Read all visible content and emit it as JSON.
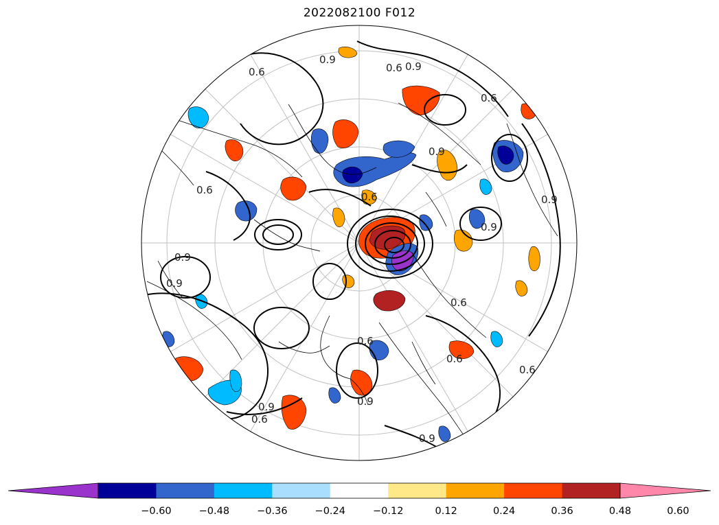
{
  "title": "2022082100 F012",
  "colorbar": {
    "colors": [
      "#9933cc",
      "#000099",
      "#3366cc",
      "#00bbff",
      "#aadeff",
      "#ffffff",
      "#ffe888",
      "#ffa500",
      "#ff4500",
      "#b22222",
      "#ff88aa"
    ],
    "extend": "both",
    "ticks": [
      "−0.60",
      "−0.48",
      "−0.36",
      "−0.24",
      "−0.12",
      "0.12",
      "0.24",
      "0.36",
      "0.48",
      "0.60"
    ]
  },
  "map": {
    "projection": "north-polar-stereographic",
    "contour_labels": [
      "0.9",
      "0.6",
      "0.9",
      "0.6",
      "0.9",
      "0.6",
      "0.9",
      "0.9",
      "0.6",
      "0.6",
      "0.9",
      "0.6",
      "0.9",
      "0.6",
      "0.9",
      "0.6",
      "0.9",
      "0.6",
      "0.9",
      "0.6"
    ]
  }
}
